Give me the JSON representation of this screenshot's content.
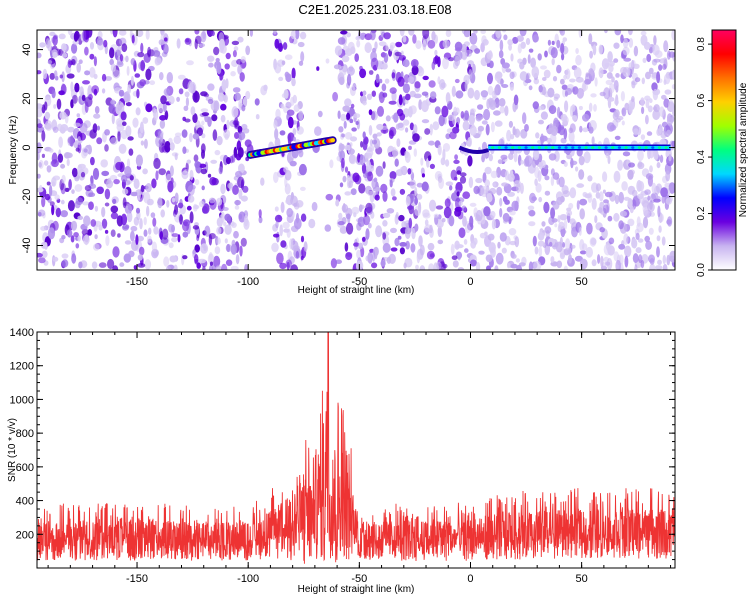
{
  "title": "C2E1.2025.231.03.18.E08",
  "chart_data": [
    {
      "type": "heatmap",
      "xlabel": "Height of straight line (km)",
      "ylabel": "Frequency (Hz)",
      "xlim": [
        -195,
        92
      ],
      "ylim": [
        -50,
        48
      ],
      "xticks": [
        -150,
        -100,
        -50,
        0,
        50
      ],
      "yticks": [
        -40,
        -20,
        0,
        20,
        40
      ],
      "colorbar": {
        "label": "Normalized spectral amplitude",
        "range": [
          0,
          0.85
        ],
        "ticks": [
          0,
          0.2,
          0.4,
          0.6,
          0.8
        ],
        "colormap": [
          "#ffffff",
          "#c8b4f0",
          "#6a00e0",
          "#0000ff",
          "#00d8ff",
          "#00ff80",
          "#a0ff00",
          "#ffd000",
          "#ff7000",
          "#ff0000",
          "#ff0060"
        ]
      },
      "features": [
        {
          "x": [
            -99,
            -62
          ],
          "frequency_hz": [
            -3,
            3
          ],
          "peak_amplitude": 0.75
        },
        {
          "x": [
            -3,
            90
          ],
          "frequency_hz": [
            0,
            0
          ],
          "peak_amplitude": 0.4
        }
      ],
      "low_signal_gaps_km": [
        [
          -100,
          -88
        ],
        [
          -75,
          -60
        ]
      ]
    },
    {
      "type": "line",
      "xlabel": "Height of straight line (km)",
      "ylabel": "SNR (10 * v/v)",
      "xlim": [
        -195,
        92
      ],
      "ylim": [
        0,
        1400
      ],
      "xticks": [
        -150,
        -100,
        -50,
        0,
        50
      ],
      "yticks": [
        200,
        400,
        600,
        800,
        1000,
        1200,
        1400
      ],
      "color": "#ee3333",
      "envelope": [
        {
          "x": -195,
          "low": 40,
          "high": 380
        },
        {
          "x": -150,
          "low": 45,
          "high": 390
        },
        {
          "x": -100,
          "low": 40,
          "high": 370
        },
        {
          "x": -90,
          "low": 60,
          "high": 460
        },
        {
          "x": -80,
          "low": 30,
          "high": 620
        },
        {
          "x": -75,
          "low": 10,
          "high": 780
        },
        {
          "x": -70,
          "low": 30,
          "high": 720
        },
        {
          "x": -65,
          "low": 20,
          "high": 1400
        },
        {
          "x": -62,
          "low": 30,
          "high": 960
        },
        {
          "x": -58,
          "low": 10,
          "high": 1110
        },
        {
          "x": -50,
          "low": 40,
          "high": 380
        },
        {
          "x": 0,
          "low": 40,
          "high": 390
        },
        {
          "x": 20,
          "low": 50,
          "high": 460
        },
        {
          "x": 60,
          "low": 60,
          "high": 480
        },
        {
          "x": 92,
          "low": 50,
          "high": 470
        }
      ],
      "peak": {
        "x": -64,
        "y": 1400
      }
    }
  ]
}
